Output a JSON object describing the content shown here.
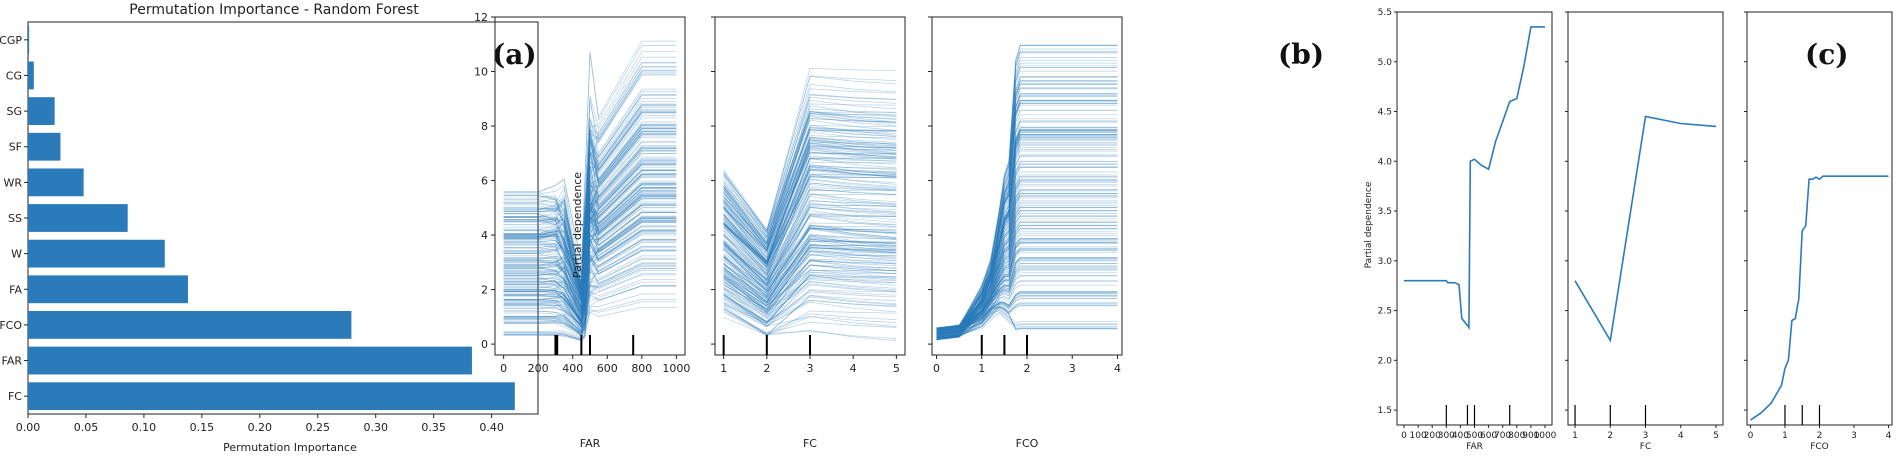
{
  "panel_labels": {
    "a": "(a)",
    "b": "(b)",
    "c": "(c)"
  },
  "chart_data": [
    {
      "type": "bar",
      "orientation": "horizontal",
      "panel": "(a)",
      "title": "Permutation Importance - Random Forest",
      "xlabel": "Permutation Importance",
      "ylabel": "",
      "xlim": [
        0,
        0.44
      ],
      "xticks": [
        0.0,
        0.05,
        0.1,
        0.15,
        0.2,
        0.25,
        0.3,
        0.35,
        0.4
      ],
      "xtick_labels": [
        "0.00",
        "0.05",
        "0.10",
        "0.15",
        "0.20",
        "0.25",
        "0.30",
        "0.35",
        "0.40"
      ],
      "categories": [
        "FC",
        "FAR",
        "FCO",
        "FA",
        "W",
        "SS",
        "WR",
        "SF",
        "SG",
        "CG",
        "CGP"
      ],
      "values": [
        0.42,
        0.383,
        0.279,
        0.138,
        0.118,
        0.086,
        0.048,
        0.028,
        0.023,
        0.005,
        0.001
      ],
      "color": "#2b7bba",
      "grid": false
    },
    {
      "type": "line",
      "panel": "(b)",
      "subtype": "ICE partial dependence (individual curves)",
      "ylabel": "Partial dependence",
      "ylim": [
        -0.4,
        12
      ],
      "yticks": [
        0,
        2,
        4,
        6,
        8,
        10,
        12
      ],
      "subplots": [
        {
          "xlabel": "FAR",
          "xlim": [
            -50,
            1050
          ],
          "xticks": [
            0,
            200,
            400,
            600,
            800,
            1000
          ],
          "rug": [
            300,
            310,
            450,
            500,
            750
          ],
          "knots": [
            0,
            200,
            300,
            350,
            450,
            470,
            500,
            550,
            600,
            650,
            700,
            750,
            800,
            900,
            1000
          ]
        },
        {
          "xlabel": "FC",
          "xlim": [
            0.8,
            5.2
          ],
          "xticks": [
            1,
            2,
            3,
            4,
            5
          ],
          "rug": [
            1,
            2,
            3
          ],
          "knots": [
            1,
            2,
            3,
            4,
            5
          ]
        },
        {
          "xlabel": "FCO",
          "xlim": [
            -0.1,
            4.1
          ],
          "xticks": [
            0,
            1,
            2,
            3,
            4
          ],
          "rug": [
            1,
            1.5,
            2
          ],
          "knots": [
            0,
            0.5,
            1,
            1.2,
            1.4,
            1.5,
            1.6,
            1.75,
            1.85,
            2,
            3,
            4
          ]
        }
      ],
      "curve_count": 200,
      "color": "#2b7bba"
    },
    {
      "type": "line",
      "panel": "(c)",
      "subtype": "average partial dependence",
      "ylabel": "Partial dependence",
      "ylim": [
        1.35,
        5.5
      ],
      "yticks": [
        1.5,
        2.0,
        2.5,
        3.0,
        3.5,
        4.0,
        4.5,
        5.0,
        5.5
      ],
      "ytick_labels": [
        "1.5",
        "2.0",
        "2.5",
        "3.0",
        "3.5",
        "4.0",
        "4.5",
        "5.0",
        "5.5"
      ],
      "series": [
        {
          "xlabel": "FAR",
          "xlim": [
            -50,
            1050
          ],
          "xticks": [
            0,
            100,
            200,
            300,
            400,
            500,
            600,
            700,
            800,
            900,
            1000
          ],
          "rug": [
            300,
            450,
            500,
            750
          ],
          "x": [
            0,
            150,
            300,
            310,
            360,
            390,
            410,
            450,
            460,
            470,
            500,
            550,
            600,
            650,
            700,
            750,
            800,
            850,
            900,
            1000
          ],
          "y": [
            2.8,
            2.8,
            2.8,
            2.78,
            2.78,
            2.76,
            2.42,
            2.35,
            2.33,
            4.0,
            4.02,
            3.96,
            3.92,
            4.2,
            4.4,
            4.6,
            4.63,
            4.95,
            5.35,
            5.35
          ]
        },
        {
          "xlabel": "FC",
          "xlim": [
            0.8,
            5.2
          ],
          "xticks": [
            1,
            2,
            3,
            4,
            5
          ],
          "rug": [
            1,
            2,
            3
          ],
          "x": [
            1,
            2,
            3,
            4,
            5
          ],
          "y": [
            2.8,
            2.2,
            4.45,
            4.38,
            4.35
          ]
        },
        {
          "xlabel": "FCO",
          "xlim": [
            -0.1,
            4.1
          ],
          "xticks": [
            0,
            1,
            2,
            3,
            4
          ],
          "rug": [
            1,
            1.5,
            2
          ],
          "x": [
            0,
            0.3,
            0.6,
            0.9,
            1.0,
            1.1,
            1.2,
            1.3,
            1.4,
            1.5,
            1.6,
            1.7,
            1.8,
            1.9,
            2.0,
            2.1,
            2.5,
            3.0,
            4.0
          ],
          "y": [
            1.4,
            1.47,
            1.57,
            1.75,
            1.92,
            2.0,
            2.4,
            2.42,
            2.62,
            3.3,
            3.35,
            3.82,
            3.82,
            3.84,
            3.82,
            3.85,
            3.85,
            3.85,
            3.85
          ]
        }
      ],
      "color": "#2b7bba"
    }
  ]
}
